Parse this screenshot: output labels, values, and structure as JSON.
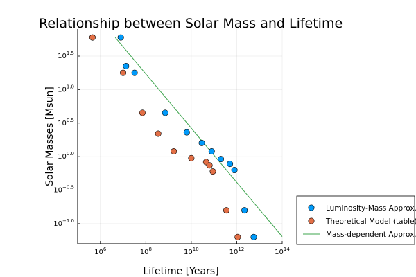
{
  "chart_data": {
    "type": "scatter",
    "title": "Relationship between Solar Mass and Lifetime",
    "xlabel": "Lifetime [Years]",
    "ylabel": "Solar Masses [Msun]",
    "xscale": "log",
    "yscale": "log",
    "xlim": [
      100000,
      100000000000000
    ],
    "ylim": [
      0.05,
      80
    ],
    "x_ticks": [
      {
        "value": 1000000,
        "base": "10",
        "exp": "6"
      },
      {
        "value": 100000000,
        "base": "10",
        "exp": "8"
      },
      {
        "value": 10000000000,
        "base": "10",
        "exp": "10"
      },
      {
        "value": 1000000000000,
        "base": "10",
        "exp": "12"
      },
      {
        "value": 100000000000000,
        "base": "10",
        "exp": "14"
      }
    ],
    "y_ticks": [
      {
        "value": 0.1,
        "base": "10",
        "exp": "−1.0"
      },
      {
        "value": 0.316,
        "base": "10",
        "exp": "−0.5"
      },
      {
        "value": 1,
        "base": "10",
        "exp": "0.0"
      },
      {
        "value": 3.162,
        "base": "10",
        "exp": "0.5"
      },
      {
        "value": 10,
        "base": "10",
        "exp": "1.0"
      },
      {
        "value": 31.62,
        "base": "10",
        "exp": "1.5"
      }
    ],
    "grid": true,
    "legend_position": "outside-right-bottom",
    "series": [
      {
        "name": "Luminosity-Mass Approx.",
        "kind": "scatter",
        "color": "#009AFA",
        "points": [
          {
            "x": 7900000.0,
            "y": 60
          },
          {
            "x": 13500000.0,
            "y": 22.4
          },
          {
            "x": 32000000.0,
            "y": 17.8
          },
          {
            "x": 710000000.0,
            "y": 4.5
          },
          {
            "x": 6300000000.0,
            "y": 2.3
          },
          {
            "x": 29000000000.0,
            "y": 1.6
          },
          {
            "x": 79000000000.0,
            "y": 1.2
          },
          {
            "x": 200000000000.0,
            "y": 0.92
          },
          {
            "x": 500000000000.0,
            "y": 0.78
          },
          {
            "x": 790000000000.0,
            "y": 0.63
          },
          {
            "x": 2200000000000.0,
            "y": 0.158
          },
          {
            "x": 5600000000000.0,
            "y": 0.063
          }
        ]
      },
      {
        "name": "Theoretical Model (table)",
        "kind": "scatter",
        "color": "#E26F46",
        "points": [
          {
            "x": 450000.0,
            "y": 60
          },
          {
            "x": 10000000.0,
            "y": 17.8
          },
          {
            "x": 71000000.0,
            "y": 4.5
          },
          {
            "x": 350000000.0,
            "y": 2.2
          },
          {
            "x": 1700000000.0,
            "y": 1.2
          },
          {
            "x": 10000000000.0,
            "y": 0.95
          },
          {
            "x": 45000000000.0,
            "y": 0.83
          },
          {
            "x": 63000000000.0,
            "y": 0.74
          },
          {
            "x": 89000000000.0,
            "y": 0.6
          },
          {
            "x": 350000000000.0,
            "y": 0.158
          },
          {
            "x": 1100000000000.0,
            "y": 0.063
          }
        ]
      },
      {
        "name": "Mass-dependent Approx.",
        "kind": "line",
        "color": "#3EA44E",
        "points": [
          {
            "x": 4500000.0,
            "y": 60
          },
          {
            "x": 100000000000000.0,
            "y": 0.064
          }
        ]
      }
    ]
  }
}
